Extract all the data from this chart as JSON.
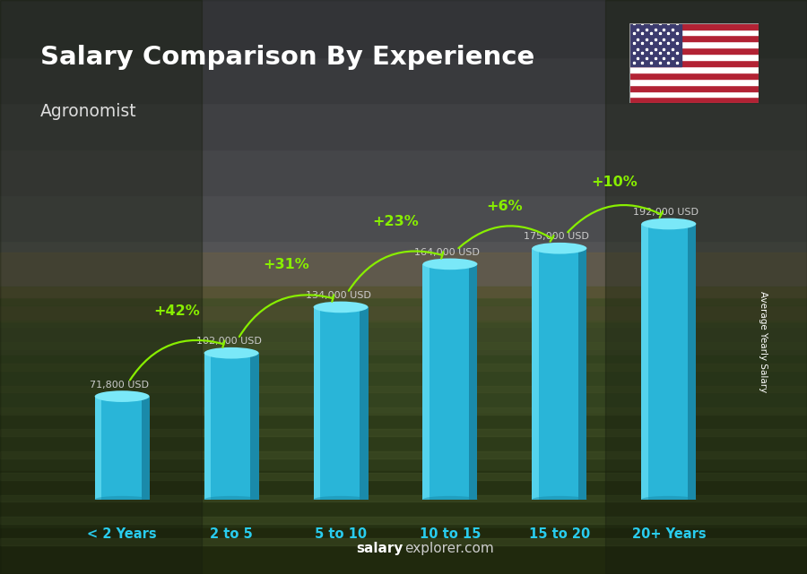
{
  "title": "Salary Comparison By Experience",
  "subtitle": "Agronomist",
  "categories": [
    "< 2 Years",
    "2 to 5",
    "5 to 10",
    "10 to 15",
    "15 to 20",
    "20+ Years"
  ],
  "values": [
    71800,
    102000,
    134000,
    164000,
    175000,
    192000
  ],
  "value_labels": [
    "71,800 USD",
    "102,000 USD",
    "134,000 USD",
    "164,000 USD",
    "175,000 USD",
    "192,000 USD"
  ],
  "pct_changes": [
    "+42%",
    "+31%",
    "+23%",
    "+6%",
    "+10%"
  ],
  "bar_color_main": "#29b5d8",
  "bar_color_light": "#5cd8f0",
  "bar_color_dark": "#1a8aaa",
  "bar_color_top": "#7ae8f8",
  "pct_color": "#88ee00",
  "value_label_color": "#cccccc",
  "xlabel_color": "#29ccee",
  "title_color": "#ffffff",
  "subtitle_color": "#dddddd",
  "ylabel_text": "Average Yearly Salary",
  "footer_salary_color": "#ffffff",
  "footer_rest_color": "#cccccc",
  "bar_width": 0.5,
  "ylim": [
    0,
    220000
  ],
  "fig_width": 9.0,
  "fig_height": 6.41,
  "sky_top_color": "#5a5a68",
  "sky_bottom_color": "#7a7060",
  "field_top_color": "#4a6030",
  "field_bottom_color": "#283818"
}
